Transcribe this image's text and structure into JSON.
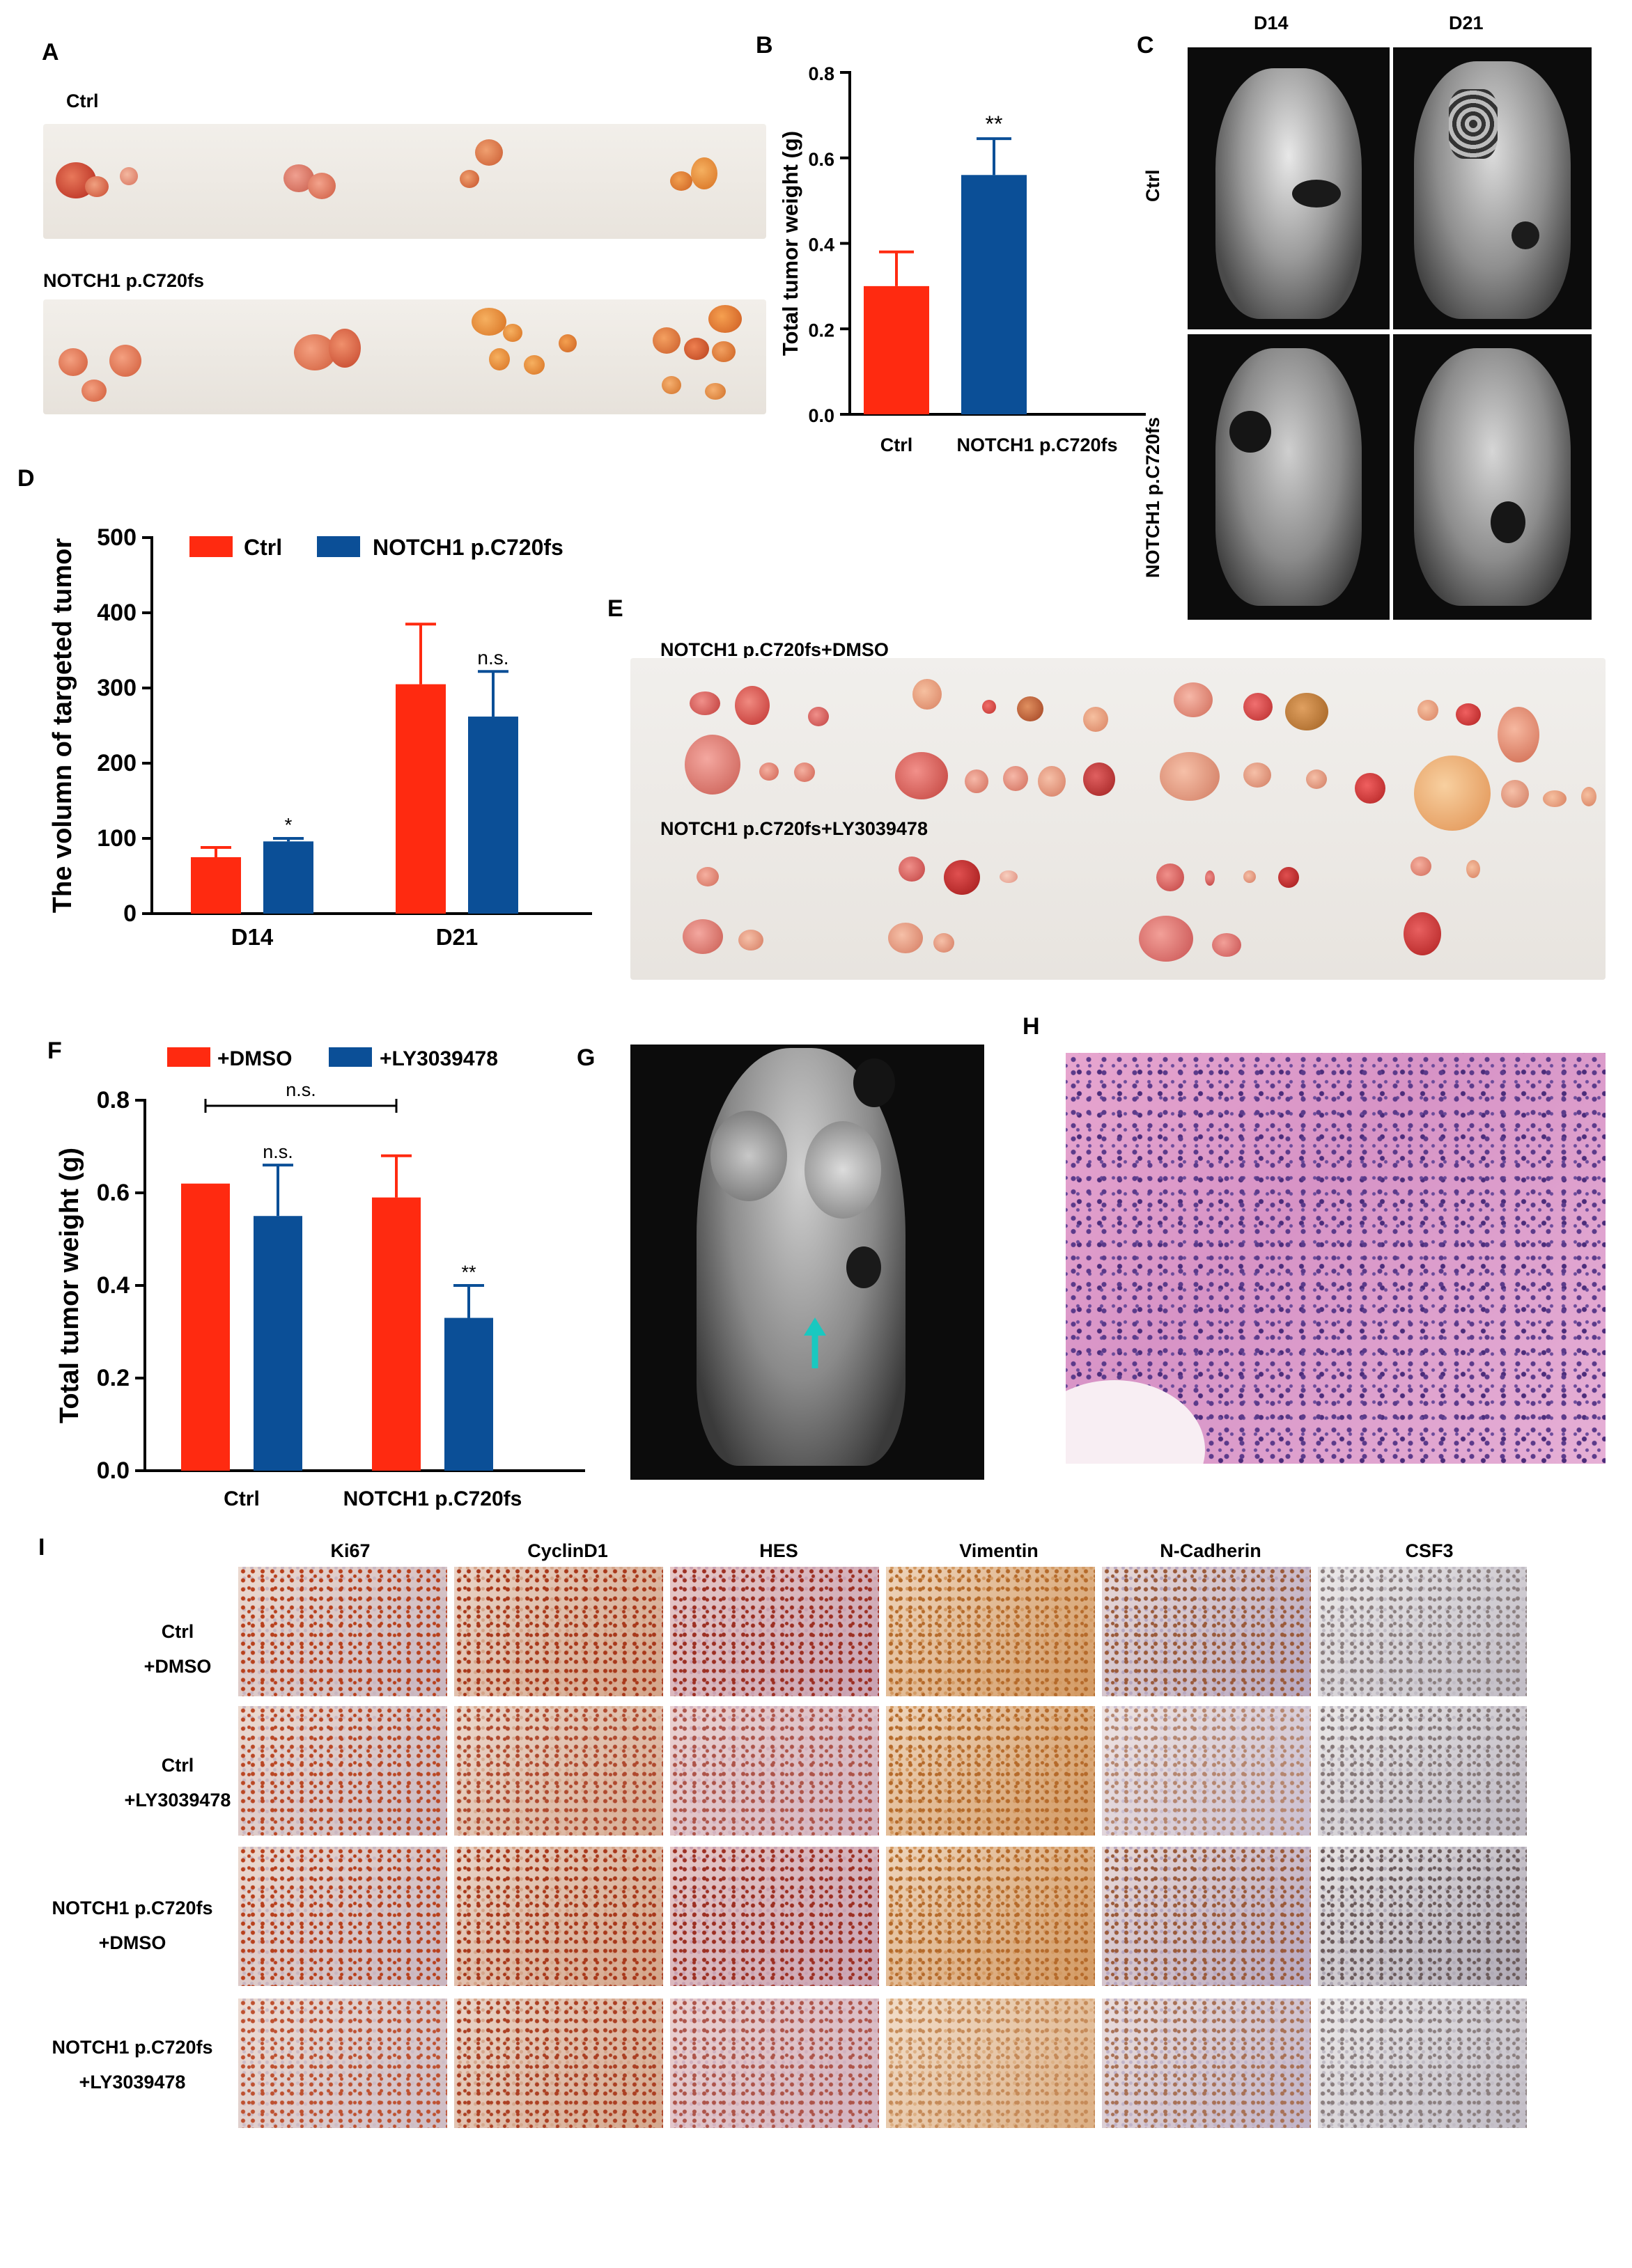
{
  "panels": {
    "A": "A",
    "B": "B",
    "C": "C",
    "D": "D",
    "E": "E",
    "F": "F",
    "G": "G",
    "H": "H",
    "I": "I"
  },
  "panelA": {
    "top_label": "Ctrl",
    "bottom_label": "NOTCH1 p.C720fs"
  },
  "panelC": {
    "col_labels": [
      "D14",
      "D21"
    ],
    "row_labels": [
      "Ctrl",
      "NOTCH1 p.C720fs"
    ]
  },
  "panelE": {
    "top_label": "NOTCH1 p.C720fs+DMSO",
    "bottom_label": "NOTCH1 p.C720fs+LY3039478"
  },
  "panelI": {
    "col_labels": [
      "Ki67",
      "CyclinD1",
      "HES",
      "Vimentin",
      "N-Cadherin",
      "CSF3"
    ],
    "row_labels": [
      {
        "line1": "Ctrl",
        "line2": "+DMSO"
      },
      {
        "line1": "Ctrl",
        "line2": "+LY3039478"
      },
      {
        "line1": "NOTCH1 p.C720fs",
        "line2": "+DMSO"
      },
      {
        "line1": "NOTCH1 p.C720fs",
        "line2": "+LY3039478"
      }
    ]
  },
  "colors": {
    "red": "#ff2a10",
    "blue": "#0b4f97"
  },
  "chart_data": [
    {
      "id": "B",
      "type": "bar",
      "categories": [
        "Ctrl",
        "NOTCH1 p.C720fs"
      ],
      "values": [
        0.3,
        0.56
      ],
      "errors": [
        0.08,
        0.085
      ],
      "colors": [
        "#ff2a10",
        "#0b4f97"
      ],
      "significance": [
        "",
        "**"
      ],
      "ylabel": "Total tumor weight (g)",
      "ylim": [
        0,
        0.8
      ],
      "yticks": [
        "0.0",
        "0.2",
        "0.4",
        "0.6",
        "0.8"
      ]
    },
    {
      "id": "D",
      "type": "bar",
      "categories": [
        "D14",
        "D21"
      ],
      "series": [
        {
          "name": "Ctrl",
          "color": "#ff2a10",
          "values": [
            75,
            305
          ],
          "errors": [
            13,
            80
          ]
        },
        {
          "name": "NOTCH1 p.C720fs",
          "color": "#0b4f97",
          "values": [
            96,
            262
          ],
          "errors": [
            4,
            60
          ]
        }
      ],
      "significance": [
        "*",
        "n.s."
      ],
      "ylabel": "The volumn of targeted tumor",
      "ylim": [
        0,
        500
      ],
      "yticks": [
        "0",
        "100",
        "200",
        "300",
        "400",
        "500"
      ],
      "legend": "top"
    },
    {
      "id": "F",
      "type": "bar",
      "categories": [
        "Ctrl",
        "NOTCH1 p.C720fs"
      ],
      "series": [
        {
          "name": "+DMSO",
          "color": "#ff2a10",
          "values": [
            0.62,
            0.59
          ],
          "errors": [
            0,
            0.09
          ]
        },
        {
          "name": "+LY3039478",
          "color": "#0b4f97",
          "values": [
            0.55,
            0.33
          ],
          "errors": [
            0.11,
            0.07
          ]
        }
      ],
      "significance": [
        "n.s.",
        "**"
      ],
      "bracket_label": "n.s.",
      "ylabel": "Total tumor  weight (g)",
      "ylim": [
        0,
        0.8
      ],
      "yticks": [
        "0.0",
        "0.2",
        "0.4",
        "0.6",
        "0.8"
      ],
      "legend": "top"
    }
  ]
}
